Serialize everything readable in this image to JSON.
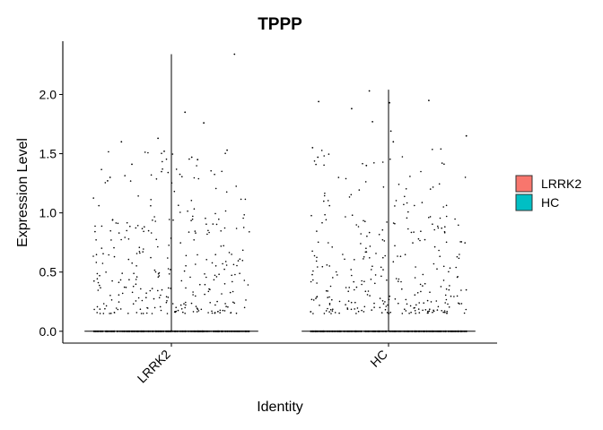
{
  "chart_data": {
    "type": "violin",
    "title": "TPPP",
    "xlabel": "Identity",
    "ylabel": "Expression Level",
    "categories": [
      "LRRK2",
      "HC"
    ],
    "ylim": [
      -0.1,
      2.45
    ],
    "yticks": [
      0.0,
      0.5,
      1.0,
      1.5,
      2.0
    ],
    "ytick_labels": [
      "0.0",
      "0.5",
      "1.0",
      "1.5",
      "2.0"
    ],
    "series": [
      {
        "name": "LRRK2",
        "color": "#F8766D",
        "max": 2.34,
        "zero_fraction": 0.78,
        "highlight_values": [
          2.34,
          1.85,
          1.76,
          1.63,
          1.6,
          1.53,
          1.52,
          1.47,
          1.45,
          1.41,
          1.3,
          1.27
        ]
      },
      {
        "name": "HC",
        "color": "#00BFC4",
        "max": 2.04,
        "zero_fraction": 0.78,
        "highlight_values": [
          2.03,
          1.95,
          1.94,
          1.93,
          1.88,
          1.77,
          1.69,
          1.65,
          1.6,
          1.55,
          1.47,
          1.4
        ]
      }
    ],
    "legend": {
      "position": "right",
      "entries": [
        {
          "label": "LRRK2",
          "color": "#F8766D"
        },
        {
          "label": "HC",
          "color": "#00BFC4"
        }
      ]
    }
  }
}
